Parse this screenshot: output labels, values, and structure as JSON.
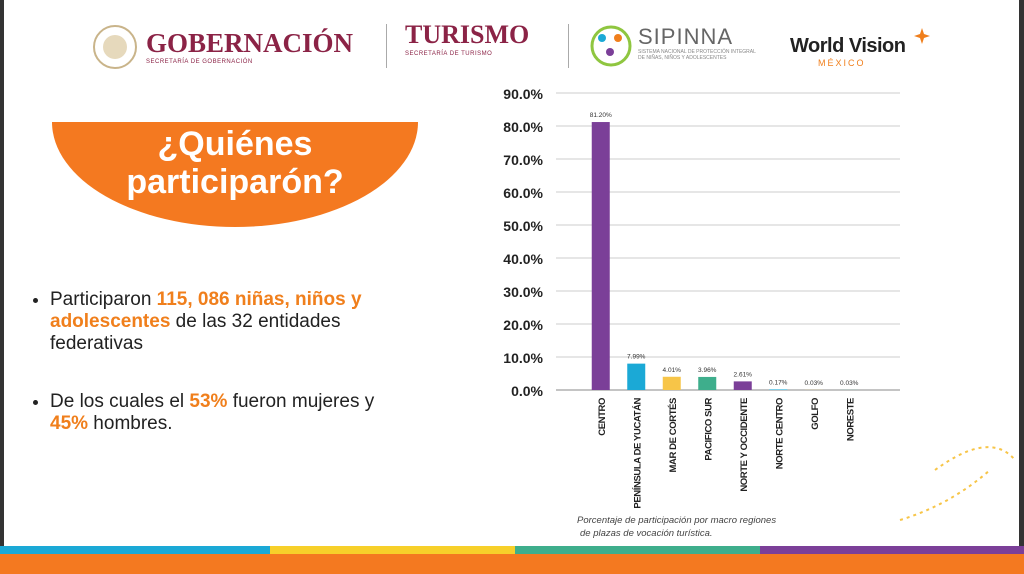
{
  "header": {
    "logos": [
      {
        "name": "GOBERNACIÓN",
        "sub": "SECRETARÍA DE GOBERNACIÓN"
      },
      {
        "name": "TURISMO",
        "sub": "SECRETARÍA DE TURISMO"
      },
      {
        "name": "SIPINNA",
        "sub": "SISTEMA NACIONAL DE PROTECCIÓN INTEGRAL DE NIÑAS, NIÑOS Y ADOLESCENTES"
      },
      {
        "name": "World Vision",
        "sub": "MÉXICO"
      }
    ]
  },
  "title": "¿Quiénes participarón?",
  "bullets": [
    [
      "Participaron ",
      "115, 086 niñas, niños y adolescentes",
      " de las 32 entidades federativas"
    ],
    [
      "De los cuales el ",
      "53%",
      " fueron mujeres y ",
      "45%",
      " hombres."
    ]
  ],
  "chart_data": {
    "type": "bar",
    "categories": [
      "CENTRO",
      "PENÍNSULA DE YUCATÁN",
      "MAR DE CORTÉS",
      "PACIFICO SUR",
      "NORTE Y OCCIDENTE",
      "NORTE CENTRO",
      "GOLFO",
      "NORESTE"
    ],
    "values": [
      81.2,
      7.99,
      4.01,
      3.96,
      2.61,
      0.17,
      0.03,
      0.03
    ],
    "value_labels": [
      "81.20%",
      "7.99%",
      "4.01%",
      "3.96%",
      "2.61%",
      "0.17%",
      "0.03%",
      "0.03%"
    ],
    "colors": [
      "#7b3f98",
      "#1ba9d6",
      "#f7c548",
      "#3eae8c",
      "#7b3f98",
      "#1ba9d6",
      "#f7c548",
      "#3eae8c"
    ],
    "ylim": [
      0,
      90
    ],
    "yticks": [
      {
        "value": 0,
        "label": "0.0%"
      },
      {
        "value": 10,
        "label": "10.0%"
      },
      {
        "value": 20,
        "label": "20.0%"
      },
      {
        "value": 30,
        "label": "30.0%"
      },
      {
        "value": 40,
        "label": "40.0%"
      },
      {
        "value": 50,
        "label": "50.0%"
      },
      {
        "value": 60,
        "label": "60.0%"
      },
      {
        "value": 70,
        "label": "70.0%"
      },
      {
        "value": 80,
        "label": "80.0%"
      },
      {
        "value": 90,
        "label": "90.0%"
      }
    ],
    "grid": true,
    "caption": "Porcentaje de participación por macro regiones de plazas de vocación turística."
  }
}
